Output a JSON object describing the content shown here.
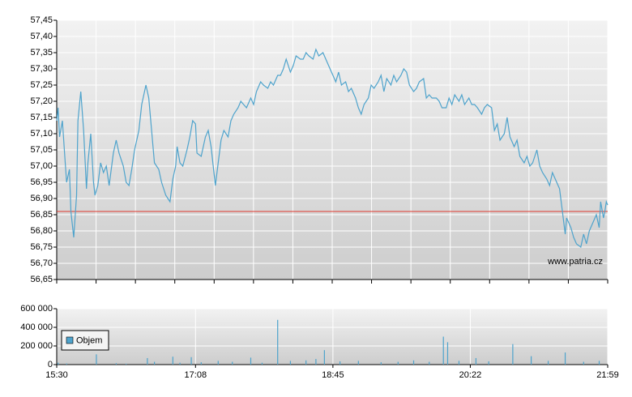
{
  "chart_data": [
    {
      "type": "line",
      "color": "#4ea3cc",
      "x": [
        "15:30",
        "15:31",
        "15:32",
        "15:34",
        "15:36",
        "15:37",
        "15:39",
        "15:40",
        "15:42",
        "15:44",
        "15:45",
        "15:47",
        "15:49",
        "15:51",
        "15:52",
        "15:54",
        "15:56",
        "15:57",
        "15:59",
        "16:01",
        "16:03",
        "16:05",
        "16:07",
        "16:10",
        "16:12",
        "16:14",
        "16:17",
        "16:19",
        "16:21",
        "16:23",
        "16:25",
        "16:28",
        "16:30",
        "16:33",
        "16:35",
        "16:37",
        "16:39",
        "16:42",
        "16:44",
        "16:47",
        "16:50",
        "16:52",
        "16:54",
        "16:55",
        "16:57",
        "16:59",
        "17:02",
        "17:04",
        "17:06",
        "17:08",
        "17:09",
        "17:12",
        "17:15",
        "17:17",
        "17:19",
        "17:22",
        "17:24",
        "17:26",
        "17:28",
        "17:31",
        "17:33",
        "17:35",
        "17:38",
        "17:40",
        "17:42",
        "17:44",
        "17:47",
        "17:49",
        "17:51",
        "17:54",
        "17:56",
        "17:59",
        "18:01",
        "18:03",
        "18:06",
        "18:08",
        "18:10",
        "18:12",
        "18:15",
        "18:17",
        "18:19",
        "18:22",
        "18:24",
        "18:26",
        "18:28",
        "18:31",
        "18:33",
        "18:35",
        "18:38",
        "18:40",
        "18:42",
        "18:45",
        "18:47",
        "18:49",
        "18:51",
        "18:54",
        "18:56",
        "18:58",
        "19:01",
        "19:03",
        "19:05",
        "19:07",
        "19:10",
        "19:12",
        "19:14",
        "19:17",
        "19:19",
        "19:21",
        "19:23",
        "19:26",
        "19:28",
        "19:30",
        "19:33",
        "19:35",
        "19:37",
        "19:39",
        "19:42",
        "19:44",
        "19:46",
        "19:49",
        "19:51",
        "19:53",
        "19:55",
        "19:58",
        "20:00",
        "20:02",
        "20:05",
        "20:07",
        "20:09",
        "20:11",
        "20:14",
        "20:16",
        "20:18",
        "20:21",
        "20:23",
        "20:25",
        "20:27",
        "20:30",
        "20:32",
        "20:34",
        "20:37",
        "20:39",
        "20:41",
        "20:43",
        "20:46",
        "20:48",
        "20:50",
        "20:53",
        "20:55",
        "20:57",
        "21:00",
        "21:02",
        "21:04",
        "21:06",
        "21:09",
        "21:11",
        "21:13",
        "21:16",
        "21:18",
        "21:20",
        "21:22",
        "21:25",
        "21:27",
        "21:29",
        "21:30",
        "21:33",
        "21:35",
        "21:37",
        "21:40",
        "21:42",
        "21:44",
        "21:46",
        "21:48",
        "21:51",
        "21:53",
        "21:54",
        "21:56",
        "21:57",
        "21:58",
        "21:59"
      ],
      "values": [
        57.14,
        57.18,
        57.09,
        57.14,
        57.01,
        56.95,
        56.99,
        56.86,
        56.78,
        56.91,
        57.14,
        57.23,
        57.11,
        56.93,
        57.01,
        57.1,
        56.95,
        56.91,
        56.94,
        57.01,
        56.98,
        57.0,
        56.94,
        57.04,
        57.08,
        57.04,
        57.0,
        56.95,
        56.94,
        56.99,
        57.05,
        57.11,
        57.19,
        57.25,
        57.21,
        57.11,
        57.01,
        56.99,
        56.95,
        56.91,
        56.89,
        56.96,
        57.0,
        57.06,
        57.01,
        57.0,
        57.05,
        57.09,
        57.14,
        57.13,
        57.04,
        57.03,
        57.09,
        57.11,
        57.06,
        56.94,
        57.01,
        57.08,
        57.11,
        57.09,
        57.14,
        57.16,
        57.18,
        57.2,
        57.19,
        57.18,
        57.21,
        57.19,
        57.23,
        57.26,
        57.25,
        57.24,
        57.26,
        57.25,
        57.28,
        57.28,
        57.3,
        57.33,
        57.29,
        57.31,
        57.34,
        57.33,
        57.33,
        57.35,
        57.34,
        57.33,
        57.36,
        57.34,
        57.35,
        57.33,
        57.31,
        57.28,
        57.26,
        57.29,
        57.25,
        57.26,
        57.23,
        57.24,
        57.21,
        57.18,
        57.16,
        57.19,
        57.21,
        57.25,
        57.24,
        57.26,
        57.28,
        57.23,
        57.27,
        57.25,
        57.28,
        57.26,
        57.28,
        57.3,
        57.29,
        57.25,
        57.23,
        57.24,
        57.26,
        57.27,
        57.21,
        57.22,
        57.21,
        57.21,
        57.2,
        57.18,
        57.18,
        57.21,
        57.19,
        57.22,
        57.2,
        57.22,
        57.19,
        57.21,
        57.19,
        57.19,
        57.18,
        57.16,
        57.18,
        57.19,
        57.18,
        57.11,
        57.13,
        57.08,
        57.1,
        57.15,
        57.09,
        57.06,
        57.08,
        57.03,
        57.01,
        57.03,
        57.0,
        57.01,
        57.05,
        57.0,
        56.98,
        56.96,
        56.94,
        56.98,
        56.96,
        56.93,
        56.86,
        56.79,
        56.84,
        56.81,
        56.78,
        56.76,
        56.75,
        56.79,
        56.76,
        56.8,
        56.82,
        56.85,
        56.81,
        56.89,
        56.84,
        56.86,
        56.89,
        56.88
      ],
      "xlim": [
        "15:30",
        "21:59"
      ],
      "ylim": [
        56.65,
        57.45
      ],
      "yticks": [
        {
          "value": 56.65,
          "label": "56,65"
        },
        {
          "value": 56.7,
          "label": "56,70"
        },
        {
          "value": 56.75,
          "label": "56,75"
        },
        {
          "value": 56.8,
          "label": "56,80"
        },
        {
          "value": 56.85,
          "label": "56,85"
        },
        {
          "value": 56.9,
          "label": "56,90"
        },
        {
          "value": 56.95,
          "label": "56,95"
        },
        {
          "value": 57,
          "label": "57,00"
        },
        {
          "value": 57.05,
          "label": "57,05"
        },
        {
          "value": 57.1,
          "label": "57,10"
        },
        {
          "value": 57.15,
          "label": "57,15"
        },
        {
          "value": 57.2,
          "label": "57,20"
        },
        {
          "value": 57.25,
          "label": "57,25"
        },
        {
          "value": 57.3,
          "label": "57,30"
        },
        {
          "value": 57.35,
          "label": "57,35"
        },
        {
          "value": 57.4,
          "label": "57,40"
        },
        {
          "value": 57.45,
          "label": "57,45"
        }
      ],
      "reference_line": {
        "value": 56.86,
        "color": "#e03a2f"
      },
      "annotation": "www.patria.cz",
      "grid": true
    },
    {
      "type": "bar",
      "x": [
        "15:31",
        "15:37",
        "15:58",
        "16:12",
        "16:19",
        "16:34",
        "16:39",
        "16:52",
        "16:57",
        "17:05",
        "17:12",
        "17:24",
        "17:34",
        "17:47",
        "17:55",
        "18:06",
        "18:15",
        "18:26",
        "18:33",
        "18:39",
        "18:50",
        "19:03",
        "19:19",
        "19:31",
        "19:42",
        "19:53",
        "20:03",
        "20:06",
        "20:14",
        "20:26",
        "20:35",
        "20:52",
        "21:05",
        "21:17",
        "21:29",
        "21:42",
        "21:53"
      ],
      "series": [
        {
          "name": "Objem",
          "color": "#4ea3cc",
          "values": [
            20000,
            12000,
            110000,
            15000,
            10000,
            70000,
            30000,
            85000,
            20000,
            80000,
            25000,
            40000,
            30000,
            75000,
            20000,
            480000,
            40000,
            45000,
            60000,
            155000,
            35000,
            40000,
            25000,
            30000,
            45000,
            30000,
            300000,
            240000,
            40000,
            70000,
            35000,
            220000,
            90000,
            40000,
            130000,
            30000,
            40000
          ]
        }
      ],
      "xlim": [
        "15:30",
        "21:59"
      ],
      "xticks": [
        "15:30",
        "17:08",
        "18:45",
        "20:22",
        "21:59"
      ],
      "ylim": [
        0,
        600000
      ],
      "yticks": [
        0,
        {
          "value": 200000,
          "label": "200 000"
        },
        {
          "value": 400000,
          "label": "400 000"
        },
        {
          "value": 600000,
          "label": "600 000"
        }
      ],
      "legend": "upper left",
      "grid": true
    }
  ]
}
